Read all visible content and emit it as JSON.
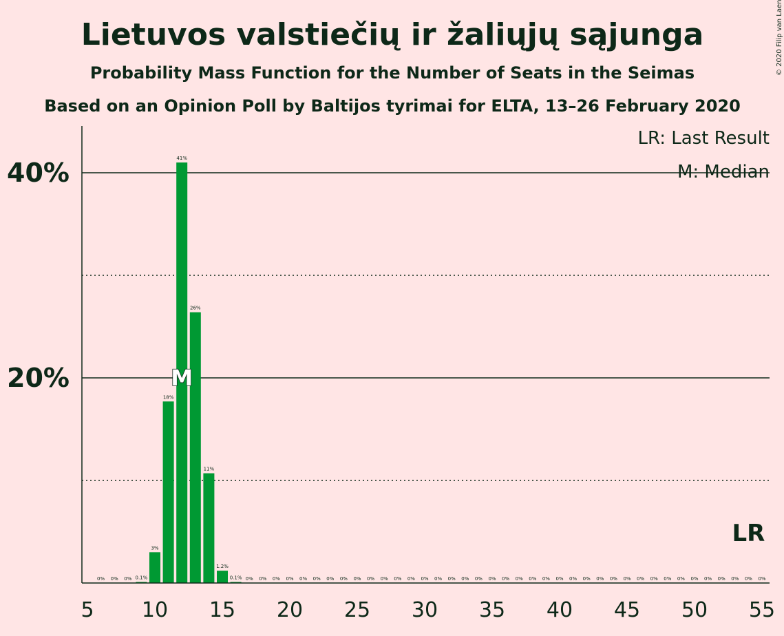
{
  "header": {
    "title": "Lietuvos valstiečių ir žaliųjų sąjunga",
    "subtitle": "Probability Mass Function for the Number of Seats in the Seimas",
    "source": "Based on an Opinion Poll by Baltijos tyrimai for ELTA, 13–26 February 2020",
    "credit": "© 2020 Filip van Laenen"
  },
  "legend": {
    "last_result": "LR: Last Result",
    "median": "M: Median"
  },
  "markers": {
    "median_label": "M",
    "median_seat": 12,
    "last_result_label": "LR",
    "last_result_seat": 54
  },
  "colors": {
    "background": "#ffe5e5",
    "bar": "#009933",
    "text": "#0d2818"
  },
  "chart_data": {
    "type": "bar",
    "xlabel": "",
    "ylabel": "",
    "xlim": [
      5,
      55
    ],
    "ylim": [
      0,
      45
    ],
    "yticks_major": [
      {
        "value": 20,
        "label": "20%"
      },
      {
        "value": 40,
        "label": "40%"
      }
    ],
    "yticks_minor": [
      10,
      30
    ],
    "xticks": [
      5,
      10,
      15,
      20,
      25,
      30,
      35,
      40,
      45,
      50,
      55
    ],
    "x": [
      6,
      7,
      8,
      9,
      10,
      11,
      12,
      13,
      14,
      15,
      16,
      17,
      18,
      19,
      20,
      21,
      22,
      23,
      24,
      25,
      26,
      27,
      28,
      29,
      30,
      31,
      32,
      33,
      34,
      35,
      36,
      37,
      38,
      39,
      40,
      41,
      42,
      43,
      44,
      45,
      46,
      47,
      48,
      49,
      50,
      51,
      52,
      53,
      54,
      55
    ],
    "values": [
      0,
      0,
      0,
      0.1,
      3,
      17.7,
      41,
      26.4,
      10.7,
      1.2,
      0.1,
      0,
      0,
      0,
      0,
      0,
      0,
      0,
      0,
      0,
      0,
      0,
      0,
      0,
      0,
      0,
      0,
      0,
      0,
      0,
      0,
      0,
      0,
      0,
      0,
      0,
      0,
      0,
      0,
      0,
      0,
      0,
      0,
      0,
      0,
      0,
      0,
      0,
      0,
      0
    ],
    "labels": [
      "0%",
      "0%",
      "0%",
      "0.1%",
      "3%",
      "18%",
      "41%",
      "26%",
      "11%",
      "1.2%",
      "0.1%",
      "0%",
      "0%",
      "0%",
      "0%",
      "0%",
      "0%",
      "0%",
      "0%",
      "0%",
      "0%",
      "0%",
      "0%",
      "0%",
      "0%",
      "0%",
      "0%",
      "0%",
      "0%",
      "0%",
      "0%",
      "0%",
      "0%",
      "0%",
      "0%",
      "0%",
      "0%",
      "0%",
      "0%",
      "0%",
      "0%",
      "0%",
      "0%",
      "0%",
      "0%",
      "0%",
      "0%",
      "0%",
      "0%",
      "0%"
    ]
  }
}
